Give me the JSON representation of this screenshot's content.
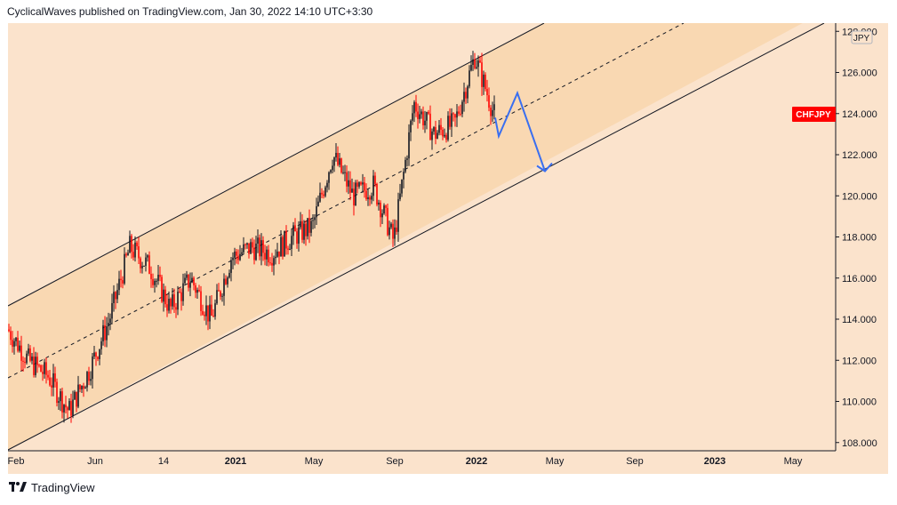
{
  "header": {
    "published_line": "CyclicalWaves published on TradingView.com, Jan 30, 2022 14:10 UTC+3:30"
  },
  "chart": {
    "symbol_badge": "CHFJPY",
    "currency_label": "JPY",
    "price_ticks": [
      "128.000",
      "126.000",
      "124.000",
      "122.000",
      "120.000",
      "118.000",
      "116.000",
      "114.000",
      "112.000",
      "110.000",
      "108.000"
    ],
    "time_ticks": [
      "Feb",
      "Jun",
      "14",
      "2021",
      "May",
      "Sep",
      "2022",
      "May",
      "Sep",
      "2023",
      "May"
    ],
    "colors": {
      "background": "#fbe3cc",
      "channel_fill": "#f9d8b2",
      "up": "#131722",
      "down": "#ff0000",
      "projection": "#3a6ff0",
      "badge": "#ff0000"
    }
  },
  "chart_data": {
    "type": "candlestick",
    "symbol": "CHFJPY",
    "ylim": [
      107.6,
      128.4
    ],
    "y_ticks": [
      128,
      126,
      124,
      122,
      120,
      118,
      116,
      114,
      112,
      110,
      108
    ],
    "x_tick_labels": [
      "Feb",
      "Jun",
      "14",
      "2021",
      "May",
      "Sep",
      "2022",
      "May",
      "Sep",
      "2023",
      "May"
    ],
    "price_path": [
      {
        "t": "Feb 2020",
        "v": 113.5
      },
      {
        "t": "Mar 2020",
        "v": 112.0
      },
      {
        "t": "Apr 2020",
        "v": 111.2
      },
      {
        "t": "May 2020",
        "v": 109.5
      },
      {
        "t": "Jun 2020",
        "v": 111.5
      },
      {
        "t": "Jul 2020",
        "v": 114.0
      },
      {
        "t": "Aug 2020",
        "v": 117.5
      },
      {
        "t": "Sep 2020",
        "v": 116.5
      },
      {
        "t": "Oct 2020",
        "v": 114.5
      },
      {
        "t": "Nov 2020",
        "v": 116.0
      },
      {
        "t": "Dec 2020",
        "v": 114.0
      },
      {
        "t": "Jan 2021",
        "v": 117.0
      },
      {
        "t": "Feb 2021",
        "v": 117.5
      },
      {
        "t": "Mar 2021",
        "v": 117.2
      },
      {
        "t": "Apr 2021",
        "v": 118.0
      },
      {
        "t": "May 2021",
        "v": 118.5
      },
      {
        "t": "Jun 2021",
        "v": 122.0
      },
      {
        "t": "Jul 2021",
        "v": 120.0
      },
      {
        "t": "Aug 2021",
        "v": 120.5
      },
      {
        "t": "Sep 2021",
        "v": 117.8
      },
      {
        "t": "Oct 2021",
        "v": 124.5
      },
      {
        "t": "Nov 2021",
        "v": 123.0
      },
      {
        "t": "Dec 2021",
        "v": 123.5
      },
      {
        "t": "Jan 2022",
        "v": 126.8
      },
      {
        "t": "Feb 2022",
        "v": 123.8
      }
    ],
    "projection": [
      {
        "t": "Feb 2022",
        "v": 123.8
      },
      {
        "t": "Feb 2022",
        "v": 122.9
      },
      {
        "t": "Mar 2022",
        "v": 125.0
      },
      {
        "t": "Apr 2022",
        "v": 121.2
      }
    ],
    "last_price_label": "CHFJPY"
  }
}
